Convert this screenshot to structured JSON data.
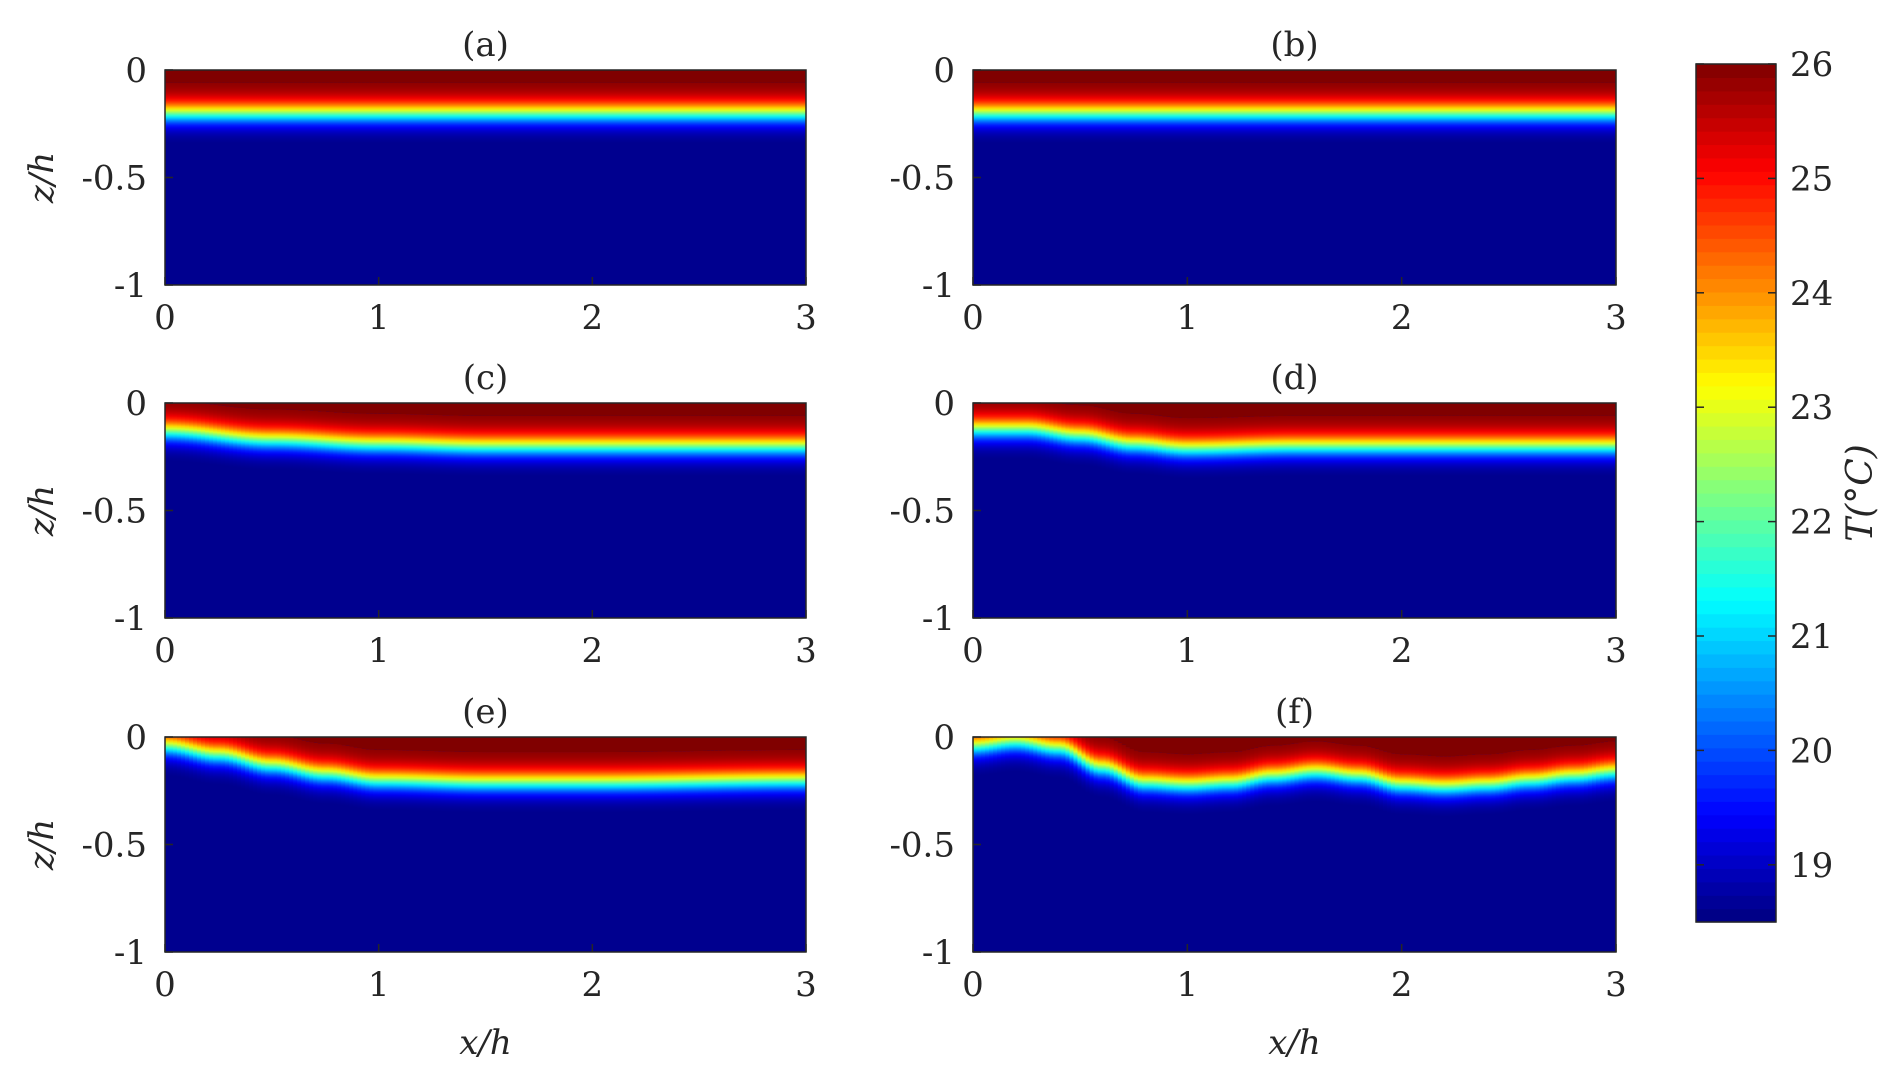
{
  "chart_data": [
    {
      "panel": "(a)",
      "type": "heatmap",
      "title": "(a)",
      "xlabel": "",
      "ylabel": "z/h",
      "xlim": [
        0,
        3
      ],
      "ylim": [
        -1,
        0
      ],
      "xticks": [
        "0",
        "1",
        "2",
        "3"
      ],
      "yticks": [
        "0",
        "-0.5",
        "-1"
      ],
      "thermocline_profile": [
        [
          0,
          -0.2
        ],
        [
          1,
          -0.2
        ],
        [
          2,
          -0.2
        ],
        [
          3,
          -0.2
        ]
      ]
    },
    {
      "panel": "(b)",
      "type": "heatmap",
      "title": "(b)",
      "xlabel": "",
      "ylabel": "",
      "xlim": [
        0,
        3
      ],
      "ylim": [
        -1,
        0
      ],
      "xticks": [
        "0",
        "1",
        "2",
        "3"
      ],
      "yticks": [
        "0",
        "-0.5",
        "-1"
      ],
      "thermocline_profile": [
        [
          0,
          -0.2
        ],
        [
          1,
          -0.2
        ],
        [
          2,
          -0.2
        ],
        [
          3,
          -0.2
        ]
      ]
    },
    {
      "panel": "(c)",
      "type": "heatmap",
      "title": "(c)",
      "xlabel": "",
      "ylabel": "z/h",
      "xlim": [
        0,
        3
      ],
      "ylim": [
        -1,
        0
      ],
      "xticks": [
        "0",
        "1",
        "2",
        "3"
      ],
      "yticks": [
        "0",
        "-0.5",
        "-1"
      ],
      "thermocline_profile": [
        [
          0,
          -0.13
        ],
        [
          0.5,
          -0.17
        ],
        [
          1,
          -0.19
        ],
        [
          1.5,
          -0.2
        ],
        [
          2,
          -0.2
        ],
        [
          3,
          -0.2
        ]
      ]
    },
    {
      "panel": "(d)",
      "type": "heatmap",
      "title": "(d)",
      "xlabel": "",
      "ylabel": "",
      "xlim": [
        0,
        3
      ],
      "ylim": [
        -1,
        0
      ],
      "xticks": [
        "0",
        "1",
        "2",
        "3"
      ],
      "yticks": [
        "0",
        "-0.5",
        "-1"
      ],
      "thermocline_profile": [
        [
          0,
          -0.12
        ],
        [
          0.25,
          -0.12
        ],
        [
          0.5,
          -0.15
        ],
        [
          0.75,
          -0.19
        ],
        [
          1,
          -0.21
        ],
        [
          1.5,
          -0.2
        ],
        [
          2,
          -0.2
        ],
        [
          2.5,
          -0.2
        ],
        [
          3,
          -0.2
        ]
      ]
    },
    {
      "panel": "(e)",
      "type": "heatmap",
      "title": "(e)",
      "xlabel": "x/h",
      "ylabel": "z/h",
      "xlim": [
        0,
        3
      ],
      "ylim": [
        -1,
        0
      ],
      "xticks": [
        "0",
        "1",
        "2",
        "3"
      ],
      "yticks": [
        "0",
        "-0.5",
        "-1"
      ],
      "thermocline_profile": [
        [
          0,
          -0.04
        ],
        [
          0.25,
          -0.08
        ],
        [
          0.5,
          -0.13
        ],
        [
          0.75,
          -0.17
        ],
        [
          1,
          -0.2
        ],
        [
          1.5,
          -0.21
        ],
        [
          2,
          -0.21
        ],
        [
          3,
          -0.2
        ]
      ]
    },
    {
      "panel": "(f)",
      "type": "heatmap",
      "title": "(f)",
      "xlabel": "x/h",
      "ylabel": "",
      "xlim": [
        0,
        3
      ],
      "ylim": [
        -1,
        0
      ],
      "xticks": [
        "0",
        "1",
        "2",
        "3"
      ],
      "yticks": [
        "0",
        "-0.5",
        "-1"
      ],
      "thermocline_profile": [
        [
          0,
          -0.04
        ],
        [
          0.2,
          -0.02
        ],
        [
          0.4,
          -0.05
        ],
        [
          0.6,
          -0.14
        ],
        [
          0.8,
          -0.21
        ],
        [
          1,
          -0.22
        ],
        [
          1.2,
          -0.21
        ],
        [
          1.4,
          -0.18
        ],
        [
          1.6,
          -0.16
        ],
        [
          1.8,
          -0.18
        ],
        [
          2,
          -0.22
        ],
        [
          2.2,
          -0.23
        ],
        [
          2.4,
          -0.22
        ],
        [
          2.6,
          -0.2
        ],
        [
          2.8,
          -0.18
        ],
        [
          3,
          -0.16
        ]
      ]
    }
  ],
  "colorbar": {
    "label": "T(°C)",
    "range": [
      18.5,
      26
    ],
    "ticks": [
      "19",
      "20",
      "21",
      "22",
      "23",
      "24",
      "25",
      "26"
    ],
    "colormap": "jet"
  },
  "colors": {
    "warm": "#800000",
    "cold": "#00008f"
  }
}
